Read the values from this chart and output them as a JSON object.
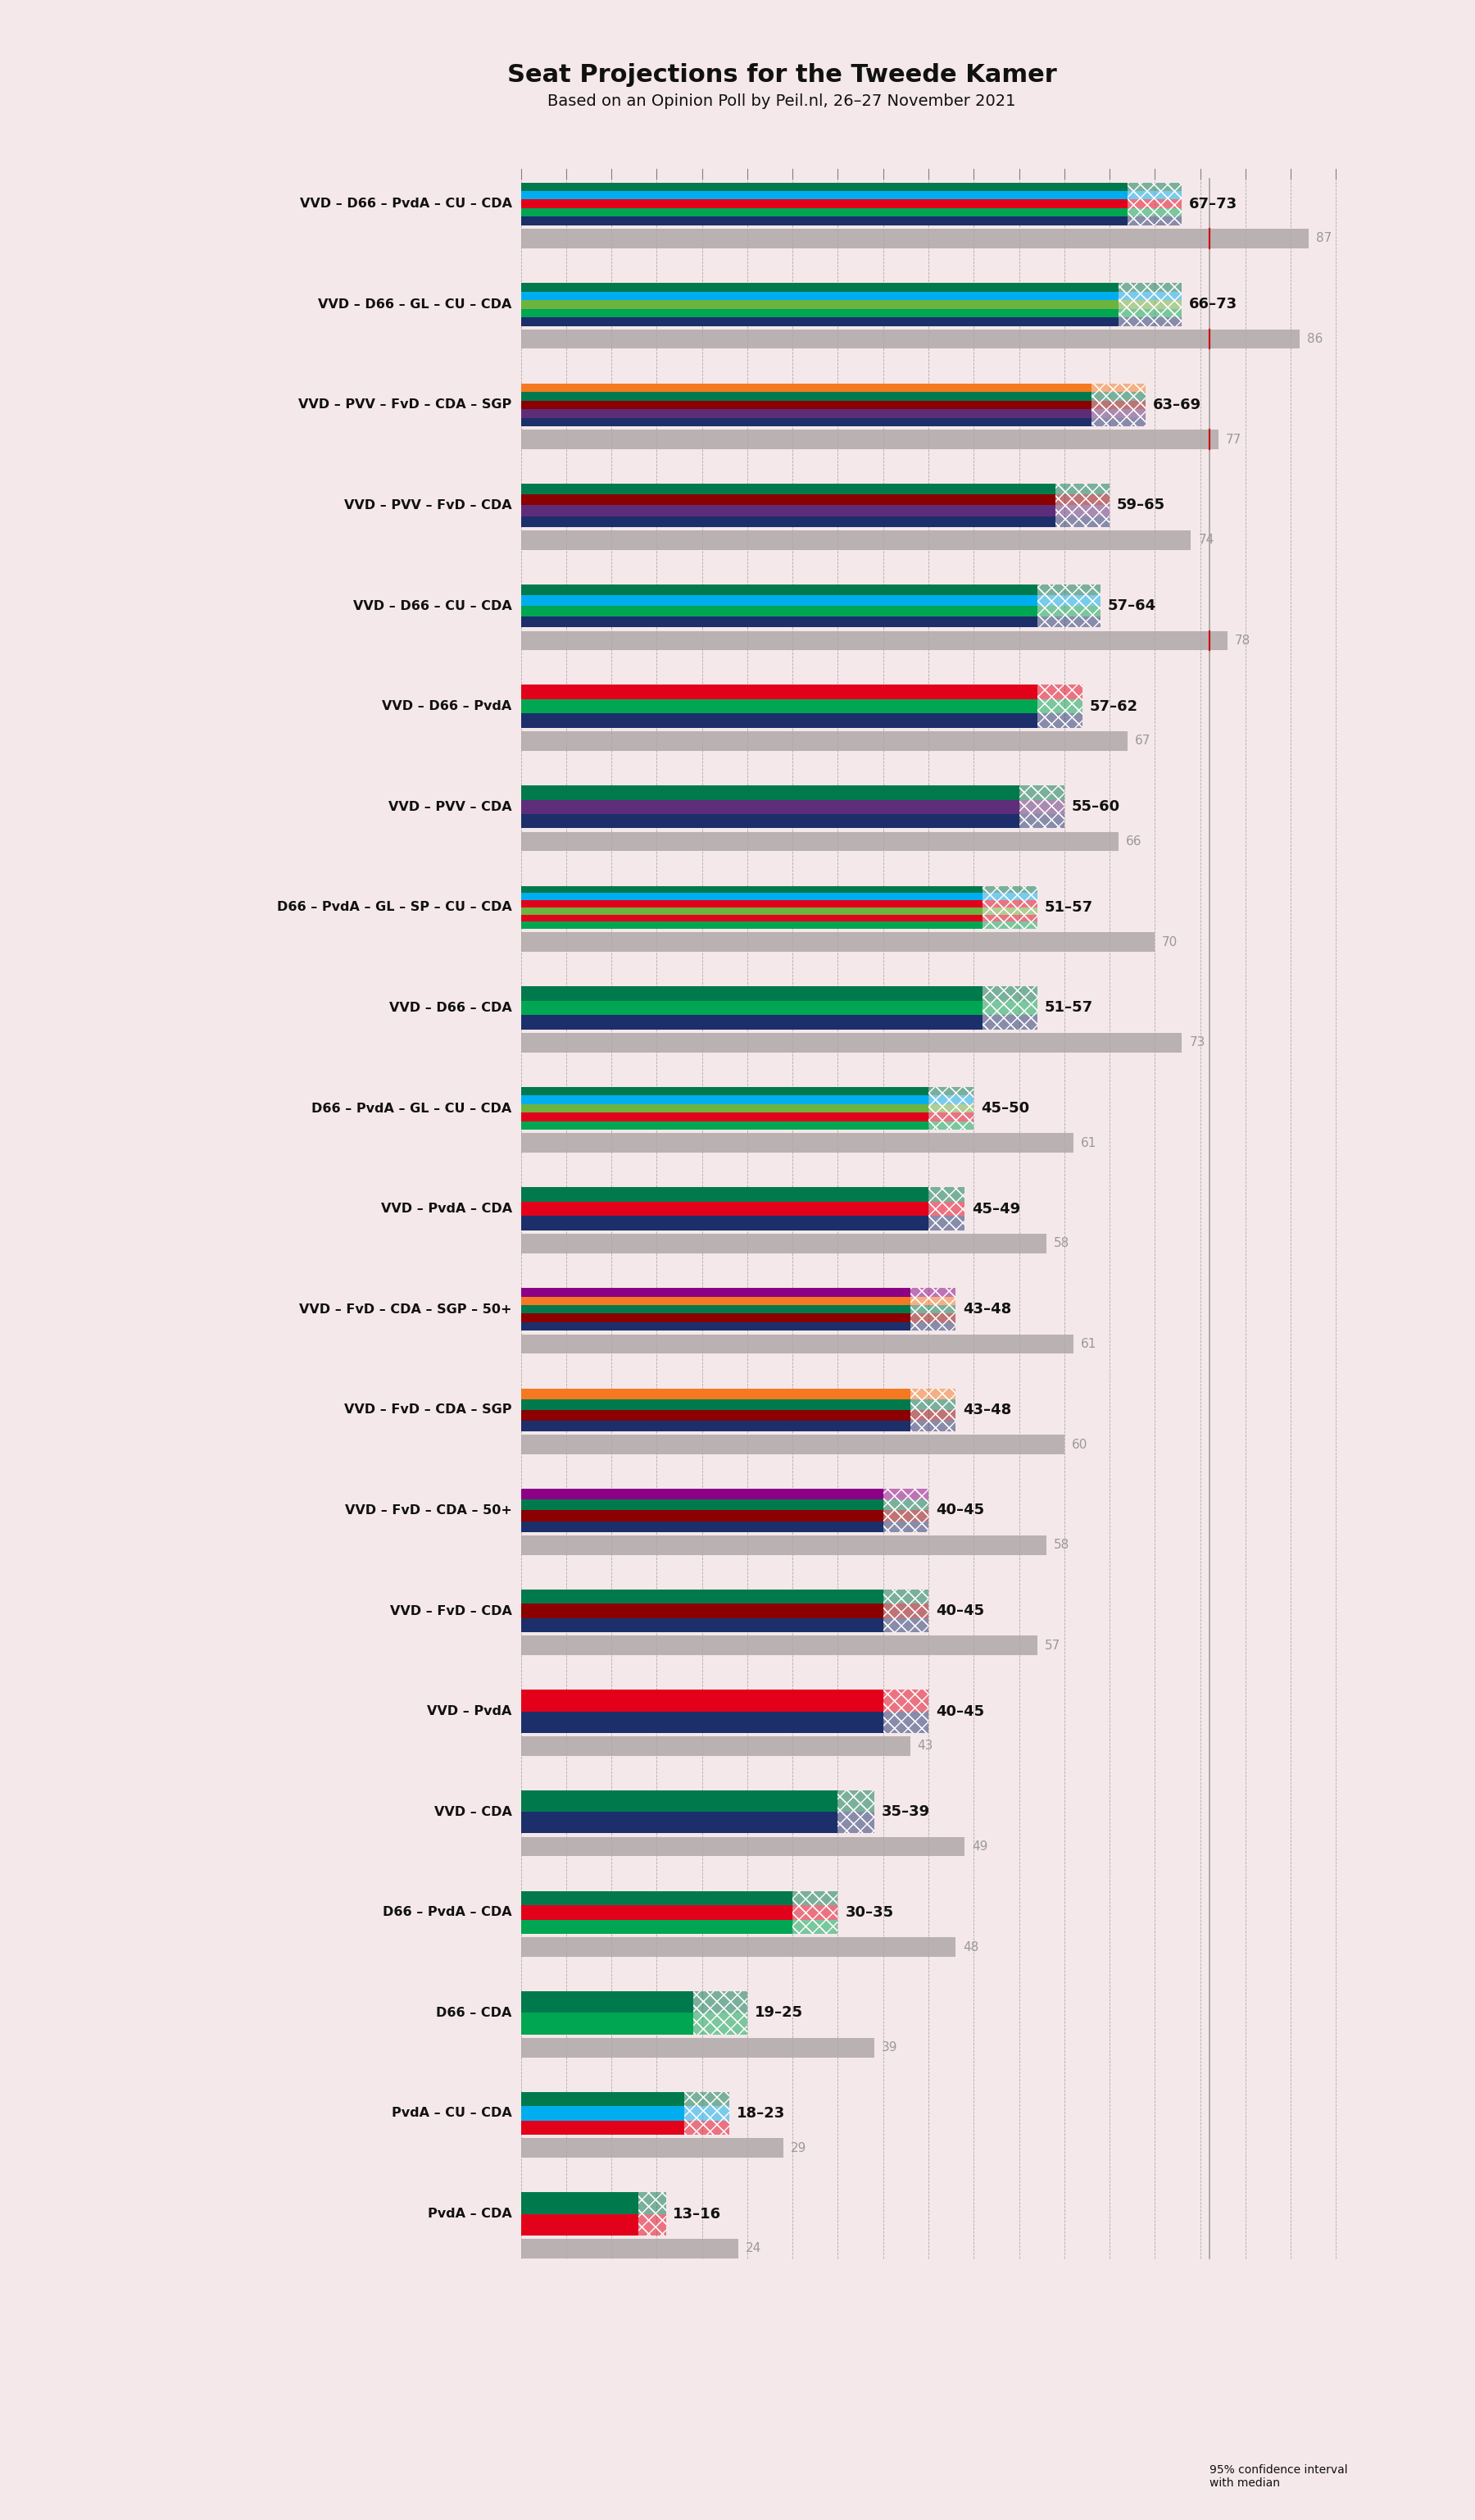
{
  "title": "Seat Projections for the Tweede Kamer",
  "subtitle": "Based on an Opinion Poll by Peil.nl, 26–27 November 2021",
  "background_color": "#f5e8ea",
  "coalitions": [
    {
      "name": "VVD – D66 – PvdA – CU – CDA",
      "range": [
        67,
        73
      ],
      "last_result": 87,
      "colors": [
        "#1c2f6b",
        "#00a651",
        "#e2001a",
        "#00aeef",
        "#007a4d"
      ]
    },
    {
      "name": "VVD – D66 – GL – CU – CDA",
      "range": [
        66,
        73
      ],
      "last_result": 86,
      "colors": [
        "#1c2f6b",
        "#00a651",
        "#6db33f",
        "#00aeef",
        "#007a4d"
      ]
    },
    {
      "name": "VVD – PVV – FvD – CDA – SGP",
      "range": [
        63,
        69
      ],
      "last_result": 77,
      "colors": [
        "#1c2f6b",
        "#5e2d79",
        "#8b0000",
        "#007a4d",
        "#f47920"
      ]
    },
    {
      "name": "VVD – PVV – FvD – CDA",
      "range": [
        59,
        65
      ],
      "last_result": 74,
      "colors": [
        "#1c2f6b",
        "#5e2d79",
        "#8b0000",
        "#007a4d"
      ]
    },
    {
      "name": "VVD – D66 – CU – CDA",
      "range": [
        57,
        64
      ],
      "last_result": 78,
      "colors": [
        "#1c2f6b",
        "#00a651",
        "#00aeef",
        "#007a4d"
      ]
    },
    {
      "name": "VVD – D66 – PvdA",
      "range": [
        57,
        62
      ],
      "last_result": 67,
      "colors": [
        "#1c2f6b",
        "#00a651",
        "#e2001a"
      ]
    },
    {
      "name": "VVD – PVV – CDA",
      "range": [
        55,
        60
      ],
      "last_result": 66,
      "colors": [
        "#1c2f6b",
        "#5e2d79",
        "#007a4d"
      ]
    },
    {
      "name": "D66 – PvdA – GL – SP – CU – CDA",
      "range": [
        51,
        57
      ],
      "last_result": 70,
      "colors": [
        "#00a651",
        "#e2001a",
        "#6db33f",
        "#e2001a",
        "#00aeef",
        "#007a4d"
      ]
    },
    {
      "name": "VVD – D66 – CDA",
      "range": [
        51,
        57
      ],
      "last_result": 73,
      "colors": [
        "#1c2f6b",
        "#00a651",
        "#007a4d"
      ]
    },
    {
      "name": "D66 – PvdA – GL – CU – CDA",
      "range": [
        45,
        50
      ],
      "last_result": 61,
      "colors": [
        "#00a651",
        "#e2001a",
        "#6db33f",
        "#00aeef",
        "#007a4d"
      ]
    },
    {
      "name": "VVD – PvdA – CDA",
      "range": [
        45,
        49
      ],
      "last_result": 58,
      "colors": [
        "#1c2f6b",
        "#e2001a",
        "#007a4d"
      ]
    },
    {
      "name": "VVD – FvD – CDA – SGP – 50+",
      "range": [
        43,
        48
      ],
      "last_result": 61,
      "colors": [
        "#1c2f6b",
        "#8b0000",
        "#007a4d",
        "#f47920",
        "#8b0085"
      ]
    },
    {
      "name": "VVD – FvD – CDA – SGP",
      "range": [
        43,
        48
      ],
      "last_result": 60,
      "colors": [
        "#1c2f6b",
        "#8b0000",
        "#007a4d",
        "#f47920"
      ]
    },
    {
      "name": "VVD – FvD – CDA – 50+",
      "range": [
        40,
        45
      ],
      "last_result": 58,
      "colors": [
        "#1c2f6b",
        "#8b0000",
        "#007a4d",
        "#8b0085"
      ]
    },
    {
      "name": "VVD – FvD – CDA",
      "range": [
        40,
        45
      ],
      "last_result": 57,
      "colors": [
        "#1c2f6b",
        "#8b0000",
        "#007a4d"
      ]
    },
    {
      "name": "VVD – PvdA",
      "range": [
        40,
        45
      ],
      "last_result": 43,
      "colors": [
        "#1c2f6b",
        "#e2001a"
      ]
    },
    {
      "name": "VVD – CDA",
      "range": [
        35,
        39
      ],
      "last_result": 49,
      "colors": [
        "#1c2f6b",
        "#007a4d"
      ]
    },
    {
      "name": "D66 – PvdA – CDA",
      "range": [
        30,
        35
      ],
      "last_result": 48,
      "colors": [
        "#00a651",
        "#e2001a",
        "#007a4d"
      ]
    },
    {
      "name": "D66 – CDA",
      "range": [
        19,
        25
      ],
      "last_result": 39,
      "colors": [
        "#00a651",
        "#007a4d"
      ]
    },
    {
      "name": "PvdA – CU – CDA",
      "range": [
        18,
        23
      ],
      "last_result": 29,
      "colors": [
        "#e2001a",
        "#00aeef",
        "#007a4d"
      ]
    },
    {
      "name": "PvdA – CDA",
      "range": [
        13,
        16
      ],
      "last_result": 24,
      "colors": [
        "#e2001a",
        "#007a4d"
      ]
    }
  ],
  "x_axis_max": 90,
  "majority_line": 76,
  "tick_interval": 5
}
